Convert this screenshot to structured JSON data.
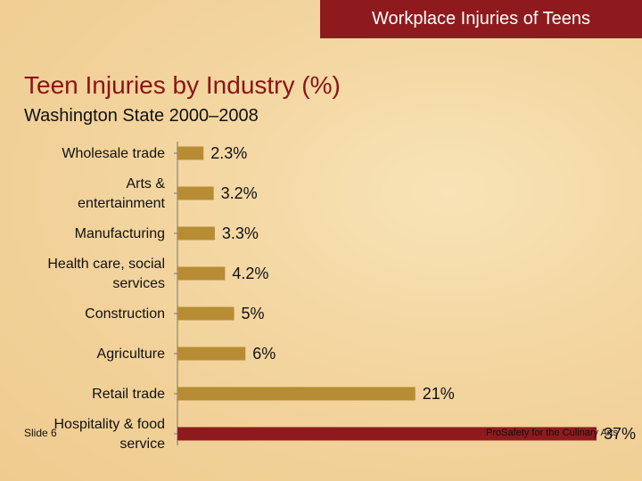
{
  "header": {
    "banner": "Workplace Injuries of Teens"
  },
  "footer": {
    "slide": "Slide 6",
    "course": "ProSafety for the Culinary Arts"
  },
  "colors": {
    "bar": "#b88c34",
    "highlight_bar": "#8f1a1d",
    "banner": "#8f1a1d",
    "title": "#8b1414"
  },
  "chart_data": {
    "type": "bar",
    "orientation": "horizontal",
    "title": "Teen Injuries by Industry (%)",
    "subtitle": "Washington State 2000–2008",
    "categories": [
      [
        "Wholesale trade"
      ],
      [
        "Arts &",
        "entertainment"
      ],
      [
        "Manufacturing"
      ],
      [
        "Health care, social",
        "services"
      ],
      [
        "Construction"
      ],
      [
        "Agriculture"
      ],
      [
        "Retail trade"
      ],
      [
        "Hospitality & food",
        "service"
      ]
    ],
    "values": [
      2.3,
      3.2,
      3.3,
      4.2,
      5,
      6,
      21,
      37
    ],
    "data_labels": [
      "2.3%",
      "3.2%",
      "3.3%",
      "4.2%",
      "5%",
      "6%",
      "21%",
      "37%"
    ],
    "highlight_index": 7,
    "xlim": [
      0,
      37
    ],
    "grid": false,
    "legend": "none"
  }
}
